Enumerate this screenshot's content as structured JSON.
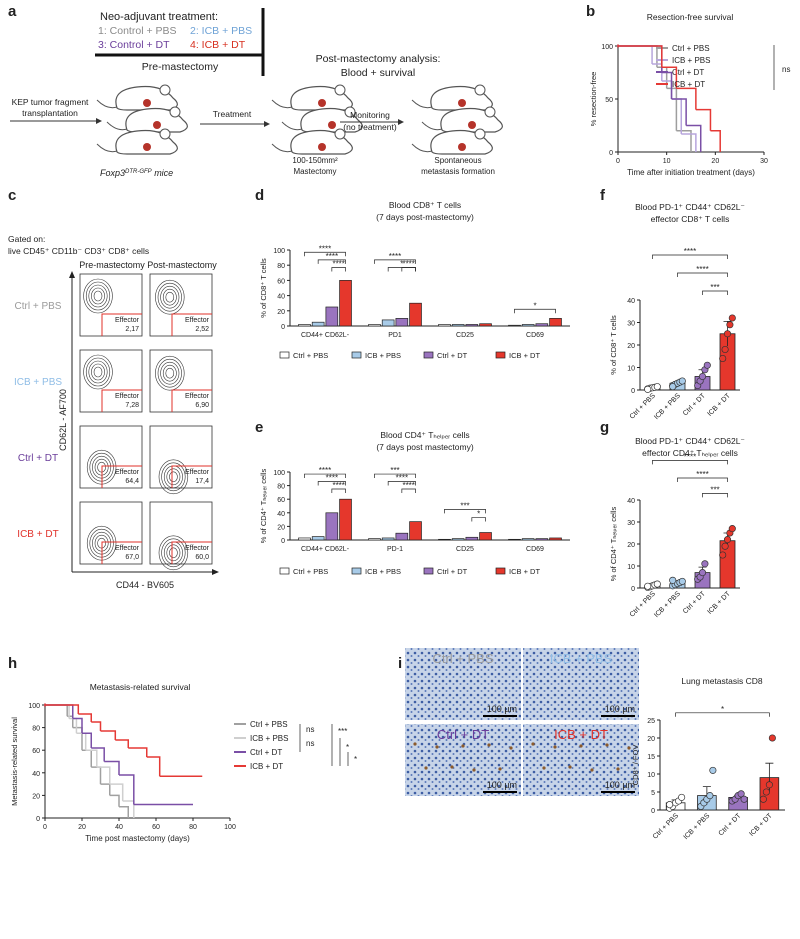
{
  "panel_labels": [
    "a",
    "b",
    "c",
    "d",
    "e",
    "f",
    "g",
    "h",
    "i"
  ],
  "panel_a": {
    "treatment_title": "Neo-adjuvant treatment:",
    "groups": [
      {
        "text": "1: Control + PBS",
        "color": "#8a8a8a"
      },
      {
        "text": "2: ICB + PBS",
        "color": "#6fa3d6"
      },
      {
        "text": "3: Control + DT",
        "color": "#6a3d9a"
      },
      {
        "text": "4: ICB + DT",
        "color": "#d7301f"
      }
    ],
    "pre": "Pre-mastectomy",
    "post_title": "Post-mastectomy analysis:",
    "post_sub": "Blood + survival",
    "transplant": [
      "KEP tumor fragment",
      "transplantation"
    ],
    "treatment": "Treatment",
    "monitoring": "Monitoring",
    "no_treatment": "(no treatment)",
    "mice": [
      "Foxp3",
      "DTR-GFP",
      " mice"
    ],
    "mastectomy": [
      "100-150mm²",
      "Mastectomy"
    ],
    "metastasis": [
      "Spontaneous",
      "metastasis formation"
    ]
  },
  "panel_c": {
    "gated": "Gated on:",
    "gate": "live CD45⁺ CD11b⁻ CD3⁺ CD8⁺ cells",
    "pre": "Pre-mastectomy",
    "post": "Post-mastectomy",
    "ylabel": "CD62L - AF700",
    "xlabel": "CD44 - BV605",
    "effector": "Effector",
    "rows": [
      {
        "name": "Ctrl + PBS",
        "color": "#9a9a9a",
        "pre": "2,17",
        "post": "2,52"
      },
      {
        "name": "ICB + PBS",
        "color": "#8fbde6",
        "pre": "7,28",
        "post": "6,90"
      },
      {
        "name": "Ctrl + DT",
        "color": "#6a3d9a",
        "pre": "64,4",
        "post": "17,4"
      },
      {
        "name": "ICB + DT",
        "color": "#e0312a",
        "pre": "67,0",
        "post": "60,0"
      }
    ]
  },
  "panel_i": {
    "images": [
      {
        "name": "Ctrl + PBS",
        "color": "#9a9a9a"
      },
      {
        "name": "ICB + PBS",
        "color": "#8fbde6"
      },
      {
        "name": "Ctrl + DT",
        "color": "#6a3d9a"
      },
      {
        "name": "ICB + DT",
        "color": "#e0312a"
      }
    ],
    "scale": "100 µm"
  },
  "chart_data": [
    {
      "type": "line",
      "step": true,
      "title": "Resection-free survival",
      "xlabel": "Time after initiation treatment (days)",
      "ylabel": "% resection-free",
      "xlim": [
        0,
        30
      ],
      "xticks": [
        0,
        10,
        20,
        30
      ],
      "ylim": [
        0,
        100
      ],
      "yticks": [
        0,
        50,
        100
      ],
      "series": [
        {
          "name": "Ctrl + PBS",
          "color": "#9e9e9e",
          "x": [
            0,
            8,
            10,
            12,
            15
          ],
          "values": [
            100,
            80,
            60,
            20,
            0
          ]
        },
        {
          "name": "ICB + PBS",
          "color": "#b7a5dc",
          "x": [
            0,
            7,
            9,
            11,
            13,
            16
          ],
          "values": [
            100,
            83,
            67,
            50,
            17,
            0
          ]
        },
        {
          "name": "Ctrl + DT",
          "color": "#7a4fa6",
          "x": [
            0,
            9,
            11,
            14,
            17
          ],
          "values": [
            100,
            75,
            50,
            25,
            0
          ]
        },
        {
          "name": "ICB + DT",
          "color": "#e53935",
          "x": [
            0,
            9,
            12,
            16,
            19,
            21
          ],
          "values": [
            100,
            80,
            60,
            40,
            20,
            0
          ]
        }
      ],
      "annotations": [
        "ns"
      ]
    },
    {
      "type": "bar",
      "title": "Blood CD8⁺ T cells",
      "subtitle": "(7 days post-mastectomy)",
      "ylabel": "% of CD8⁺ T cells",
      "categories": [
        "CD44+ CD62L-",
        "PD1",
        "CD25",
        "CD69"
      ],
      "ylim": [
        0,
        100
      ],
      "yticks": [
        0,
        20,
        40,
        60,
        80,
        100
      ],
      "series": [
        {
          "name": "Ctrl + PBS",
          "color": "#ffffff",
          "values": [
            2,
            2,
            2,
            1
          ]
        },
        {
          "name": "ICB + PBS",
          "color": "#a8cbe8",
          "values": [
            5,
            8,
            2,
            2
          ]
        },
        {
          "name": "Ctrl + DT",
          "color": "#9a74bf",
          "values": [
            25,
            10,
            2,
            3
          ]
        },
        {
          "name": "ICB + DT",
          "color": "#e5372c",
          "values": [
            60,
            30,
            3,
            10
          ]
        }
      ],
      "annotations": [
        "****",
        "****",
        "****",
        "****",
        "*",
        "****",
        "*"
      ]
    },
    {
      "type": "bar",
      "title": "Blood CD4⁺ Tₕₑₗₚₑᵣ cells",
      "subtitle": "(7 days post mastectomy)",
      "ylabel": "% of CD4⁺ Tₕₑₗₚₑᵣ cells",
      "categories": [
        "CD44+ CD62L-",
        "PD-1",
        "CD25",
        "CD69"
      ],
      "ylim": [
        0,
        100
      ],
      "yticks": [
        0,
        20,
        40,
        60,
        80,
        100
      ],
      "series": [
        {
          "name": "Ctrl + PBS",
          "color": "#ffffff",
          "values": [
            3,
            2,
            1,
            1
          ]
        },
        {
          "name": "ICB + PBS",
          "color": "#a8cbe8",
          "values": [
            5,
            3,
            2,
            2
          ]
        },
        {
          "name": "Ctrl + DT",
          "color": "#9a74bf",
          "values": [
            40,
            10,
            4,
            2
          ]
        },
        {
          "name": "ICB + DT",
          "color": "#e5372c",
          "values": [
            60,
            27,
            11,
            3
          ]
        }
      ],
      "annotations": [
        "****",
        "****",
        "****",
        "***",
        "****",
        "****",
        "***",
        "*"
      ]
    },
    {
      "type": "column",
      "title": "Blood PD-1⁺ CD44⁺ CD62L⁻",
      "subtitle": "effector CD8⁺ T cells",
      "ylabel": "% of CD8⁺ T cells",
      "categories": [
        "Ctrl + PBS",
        "ICB + PBS",
        "Ctrl + DT",
        "ICB + DT"
      ],
      "colors": [
        "#ffffff",
        "#a8cbe8",
        "#9a74bf",
        "#e5372c"
      ],
      "values": [
        1,
        3,
        6,
        25
      ],
      "errors": [
        0.5,
        0.8,
        3,
        5.5
      ],
      "points": [
        [
          0.5,
          0.8,
          1,
          1.2,
          1.5,
          0.3
        ],
        [
          2,
          2.5,
          3,
          3.5,
          4,
          1.5
        ],
        [
          2,
          4,
          6,
          9,
          11
        ],
        [
          14,
          18,
          25,
          29,
          32
        ]
      ],
      "ylim": [
        0,
        40
      ],
      "yticks": [
        0,
        10,
        20,
        30,
        40
      ],
      "annotations": [
        "****",
        "****",
        "***"
      ]
    },
    {
      "type": "column",
      "title": "Blood PD-1⁺ CD44⁺ CD62L⁻",
      "subtitle": "effector CD4⁺ Tₕₑₗₚₑᵣ cells",
      "ylabel": "% of CD4⁺ Tₕₑₗₚₑᵣ cells",
      "categories": [
        "Ctrl + PBS",
        "ICB + PBS",
        "Ctrl + DT",
        "ICB + DT"
      ],
      "colors": [
        "#ffffff",
        "#a8cbe8",
        "#9a74bf",
        "#e5372c"
      ],
      "values": [
        1,
        2,
        7,
        21.5
      ],
      "errors": [
        0.4,
        0.6,
        2.5,
        3.5
      ],
      "points": [
        [
          0.3,
          0.6,
          1,
          1.4,
          1.8,
          0.8
        ],
        [
          1,
          1.5,
          2,
          2.5,
          3,
          3.5
        ],
        [
          4,
          5,
          7,
          11
        ],
        [
          15,
          19,
          22,
          25,
          27
        ]
      ],
      "ylim": [
        0,
        40
      ],
      "yticks": [
        0,
        10,
        20,
        30,
        40
      ],
      "annotations": [
        "****",
        "****",
        "***"
      ]
    },
    {
      "type": "line",
      "step": true,
      "title": "Metastasis-related survival",
      "xlabel": "Time post mastectomy (days)",
      "ylabel": "Metastasis-related survival",
      "xlim": [
        0,
        100
      ],
      "xticks": [
        0,
        20,
        40,
        60,
        80,
        100
      ],
      "ylim": [
        0,
        100
      ],
      "yticks": [
        0,
        20,
        40,
        60,
        80,
        100
      ],
      "series": [
        {
          "name": "Ctrl + PBS",
          "color": "#a0a0a0",
          "x": [
            0,
            12,
            15,
            20,
            25,
            30,
            35,
            40,
            45
          ],
          "values": [
            100,
            90,
            80,
            60,
            45,
            30,
            20,
            10,
            0
          ]
        },
        {
          "name": "ICB + PBS",
          "color": "#cfcfcf",
          "x": [
            0,
            13,
            17,
            22,
            28,
            35,
            42,
            48
          ],
          "values": [
            100,
            88,
            75,
            60,
            45,
            30,
            15,
            0
          ]
        },
        {
          "name": "Ctrl + DT",
          "color": "#7a4fa6",
          "x": [
            0,
            15,
            20,
            25,
            32,
            40,
            48,
            80
          ],
          "values": [
            100,
            88,
            75,
            62,
            50,
            38,
            12,
            12
          ]
        },
        {
          "name": "ICB + DT",
          "color": "#e53935",
          "x": [
            0,
            18,
            25,
            30,
            38,
            45,
            55,
            62,
            85
          ],
          "values": [
            100,
            92,
            85,
            77,
            69,
            62,
            54,
            37,
            37
          ]
        }
      ],
      "annotations": [
        "ns",
        "ns",
        "***",
        "*",
        "*"
      ]
    },
    {
      "type": "column",
      "title": "Lung metastasis CD8",
      "ylabel": "CD8⁺ / FOV",
      "categories": [
        "Ctrl + PBS",
        "ICB + PBS",
        "Ctrl + DT",
        "ICB + DT"
      ],
      "colors": [
        "#ffffff",
        "#a8cbe8",
        "#9a74bf",
        "#e5372c"
      ],
      "values": [
        2,
        4,
        3.5,
        9
      ],
      "errors": [
        0.8,
        2.5,
        0.6,
        4
      ],
      "points": [
        [
          0.5,
          1,
          2,
          2.5,
          3.5,
          1.5
        ],
        [
          1,
          2,
          3,
          4,
          11
        ],
        [
          2.5,
          3,
          4,
          4.5,
          3
        ],
        [
          3,
          5,
          7,
          20
        ]
      ],
      "ylim": [
        0,
        25
      ],
      "yticks": [
        0,
        5,
        10,
        15,
        20,
        25
      ],
      "annotations": [
        "*"
      ]
    }
  ]
}
